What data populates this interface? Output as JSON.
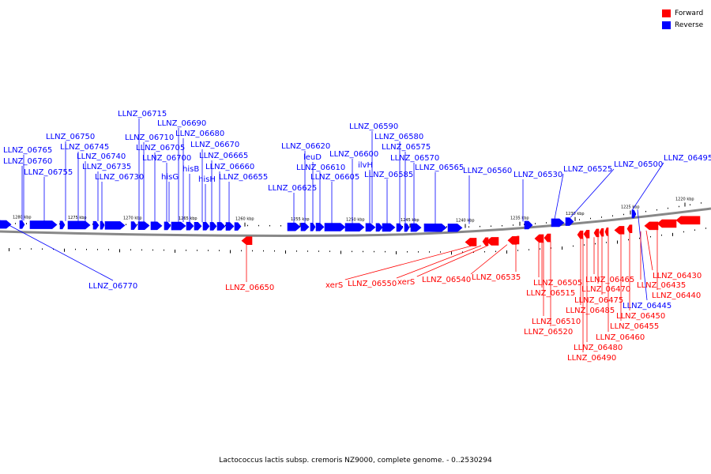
{
  "legend": {
    "forward": {
      "label": "Forward",
      "color": "#ff0000"
    },
    "reverse": {
      "label": "Reverse",
      "color": "#0000ff"
    }
  },
  "caption": "Lactococcus lactis subsp. cremoris NZ9000, complete genome. - 0..2530294",
  "ticks": [
    "1280 kbp",
    "1275 kbp",
    "1270 kbp",
    "1265 kbp",
    "1260 kbp",
    "1255 kbp",
    "1250 kbp",
    "1245 kbp",
    "1240 kbp",
    "1235 kbp",
    "1230 kbp",
    "1225 kbp",
    "1220 kbp"
  ],
  "reverse_labels": [
    "LLNZ_06765",
    "LLNZ_06760",
    "LLNZ_06755",
    "LLNZ_06750",
    "LLNZ_06745",
    "LLNZ_06740",
    "LLNZ_06735",
    "LLNZ_06730",
    "LLNZ_06715",
    "LLNZ_06710",
    "LLNZ_06705",
    "LLNZ_06700",
    "LLNZ_06690",
    "LLNZ_06680",
    "hisG",
    "hisB",
    "LLNZ_06670",
    "hisH",
    "LLNZ_06665",
    "LLNZ_06660",
    "LLNZ_06655",
    "LLNZ_06625",
    "LLNZ_06620",
    "leuD",
    "LLNZ_06610",
    "LLNZ_06605",
    "LLNZ_06600",
    "ilvH",
    "LLNZ_06590",
    "LLNZ_06585",
    "LLNZ_06580",
    "LLNZ_06575",
    "LLNZ_06570",
    "LLNZ_06565",
    "LLNZ_06560",
    "LLNZ_06530",
    "LLNZ_06525",
    "LLNZ_06500",
    "LLNZ_06495",
    "LLNZ_06770",
    "LLNZ_06445"
  ],
  "forward_labels": [
    "LLNZ_06650",
    "xerS",
    "LLNZ_06550",
    "xerS",
    "LLNZ_06540",
    "LLNZ_06535",
    "LLNZ_06505",
    "LLNZ_06515",
    "LLNZ_06510",
    "LLNZ_06520",
    "LLNZ_06465",
    "LLNZ_06470",
    "LLNZ_06475",
    "LLNZ_06485",
    "LLNZ_06480",
    "LLNZ_06490",
    "LLNZ_06430",
    "LLNZ_06435",
    "LLNZ_06440",
    "LLNZ_06450",
    "LLNZ_06455",
    "LLNZ_06460"
  ]
}
